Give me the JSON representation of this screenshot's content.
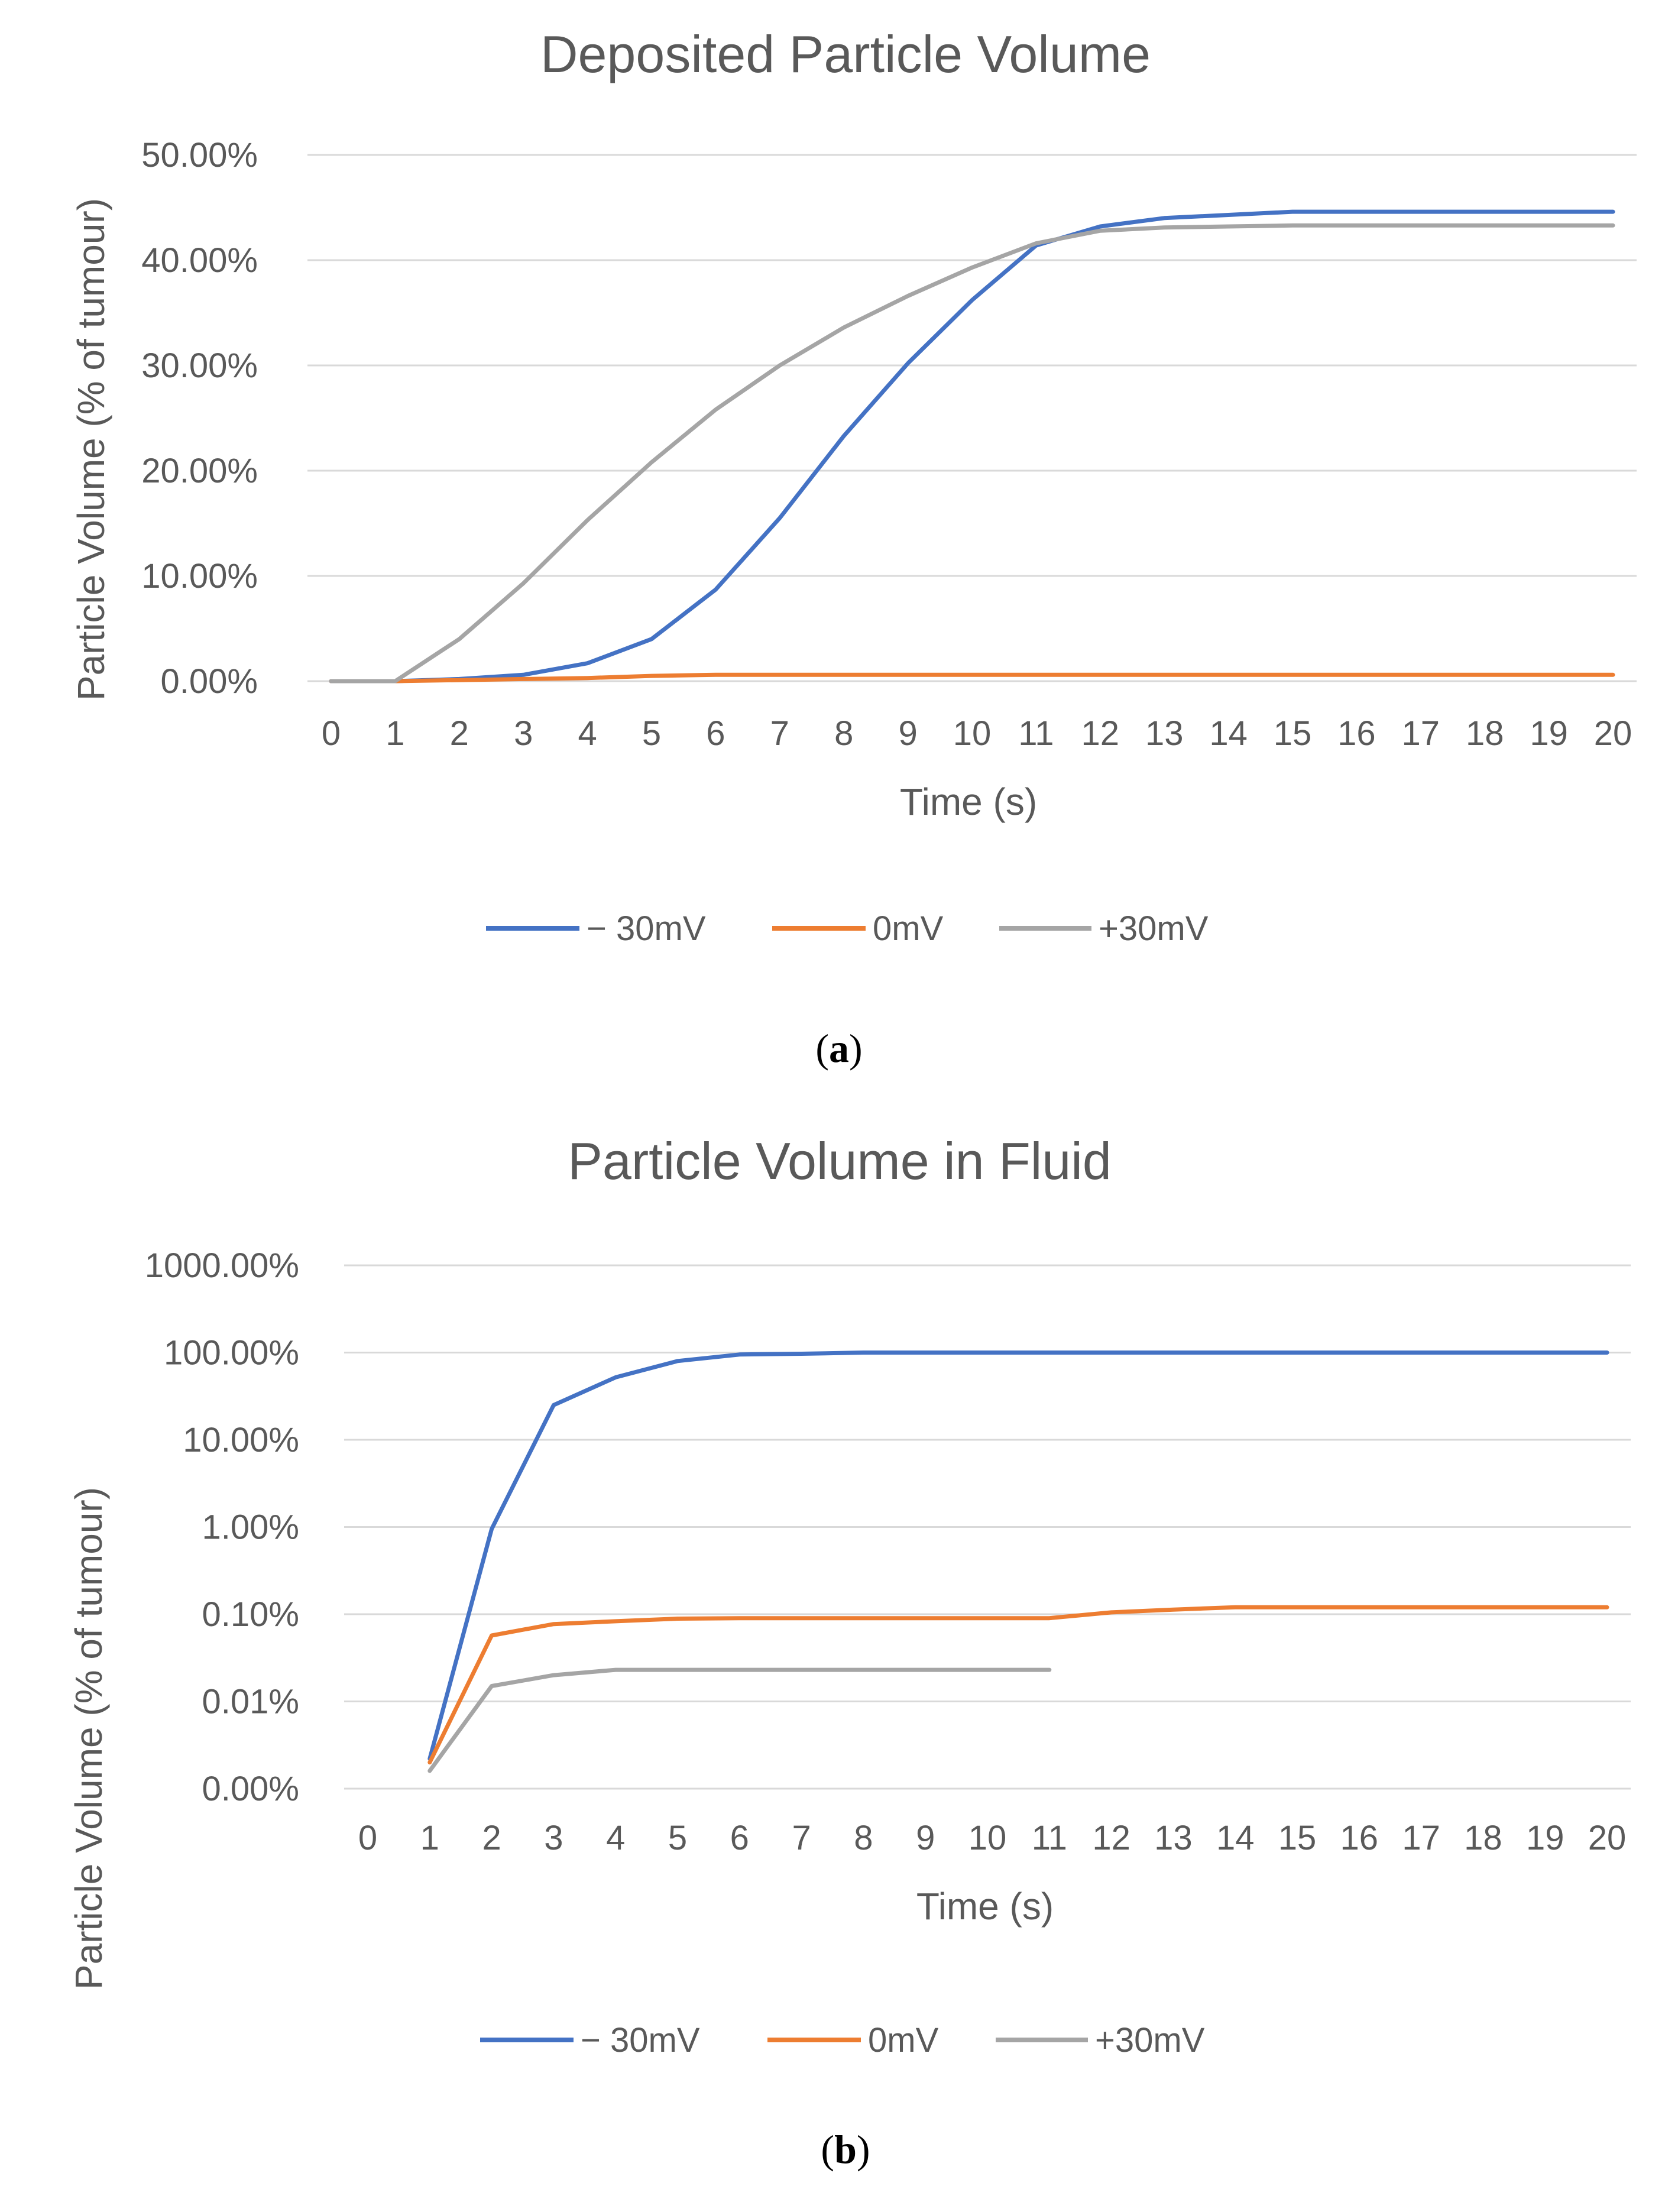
{
  "chart_data": [
    {
      "type": "line",
      "panel_label": "a",
      "title": "Deposited Particle Volume",
      "xlabel": "Time (s)",
      "ylabel": "Particle Volume (% of tumour)",
      "y_scale": "linear",
      "ylim": [
        0,
        50
      ],
      "y_ticks": [
        0,
        10,
        20,
        30,
        40,
        50
      ],
      "y_tick_labels": [
        "0.00%",
        "10.00%",
        "20.00%",
        "30.00%",
        "40.00%",
        "50.00%"
      ],
      "categories": [
        "0",
        "1",
        "2",
        "3",
        "4",
        "5",
        "6",
        "7",
        "8",
        "9",
        "10",
        "11",
        "12",
        "13",
        "14",
        "15",
        "16",
        "17",
        "18",
        "19",
        "20"
      ],
      "grid": true,
      "legend": "bottom",
      "series": [
        {
          "name": "− 30mV",
          "color": "#4472C4",
          "values": [
            0,
            0,
            0.2,
            0.6,
            1.7,
            4,
            8.7,
            15.5,
            23.3,
            30.2,
            36.2,
            41.4,
            43.2,
            44,
            44.3,
            44.6,
            44.6,
            44.6,
            44.6,
            44.6,
            44.6
          ]
        },
        {
          "name": "0mV",
          "color": "#ED7D31",
          "values": [
            0,
            0,
            0.1,
            0.2,
            0.3,
            0.5,
            0.6,
            0.6,
            0.6,
            0.6,
            0.6,
            0.6,
            0.6,
            0.6,
            0.6,
            0.6,
            0.6,
            0.6,
            0.6,
            0.6,
            0.6
          ]
        },
        {
          "name": "+30mV",
          "color": "#A5A5A5",
          "values": [
            0,
            0,
            4,
            9.3,
            15.3,
            20.8,
            25.8,
            30,
            33.6,
            36.6,
            39.3,
            41.6,
            42.8,
            43.1,
            43.2,
            43.3,
            43.3,
            43.3,
            43.3,
            43.3,
            43.3
          ]
        }
      ]
    },
    {
      "type": "line",
      "panel_label": "b",
      "title": "Particle Volume in Fluid",
      "xlabel": "Time (s)",
      "ylabel": "Particle Volume (% of tumour)",
      "y_scale": "log",
      "ylim": [
        0.001,
        1000
      ],
      "y_ticks": [
        0.001,
        0.01,
        0.1,
        1,
        10,
        100,
        1000
      ],
      "y_tick_labels": [
        "0.00%",
        "0.01%",
        "0.10%",
        "1.00%",
        "10.00%",
        "100.00%",
        "1000.00%"
      ],
      "categories": [
        "0",
        "1",
        "2",
        "3",
        "4",
        "5",
        "6",
        "7",
        "8",
        "9",
        "10",
        "11",
        "12",
        "13",
        "14",
        "15",
        "16",
        "17",
        "18",
        "19",
        "20"
      ],
      "grid": true,
      "legend": "bottom",
      "series": [
        {
          "name": "− 30mV",
          "color": "#4472C4",
          "values": [
            null,
            0.0022,
            0.95,
            25,
            52,
            80,
            95,
            97,
            100,
            100,
            100,
            100,
            100,
            100,
            100,
            100,
            100,
            100,
            100,
            100,
            100
          ]
        },
        {
          "name": "0mV",
          "color": "#ED7D31",
          "values": [
            null,
            0.002,
            0.057,
            0.077,
            0.083,
            0.089,
            0.09,
            0.09,
            0.09,
            0.09,
            0.09,
            0.09,
            0.105,
            0.113,
            0.12,
            0.12,
            0.12,
            0.12,
            0.12,
            0.12,
            0.12
          ]
        },
        {
          "name": "+30mV",
          "color": "#A5A5A5",
          "values": [
            null,
            0.0016,
            0.015,
            0.02,
            0.023,
            0.023,
            0.023,
            0.023,
            0.023,
            0.023,
            0.023,
            0.023,
            null,
            null,
            null,
            null,
            null,
            null,
            null,
            null,
            null
          ]
        }
      ]
    }
  ]
}
